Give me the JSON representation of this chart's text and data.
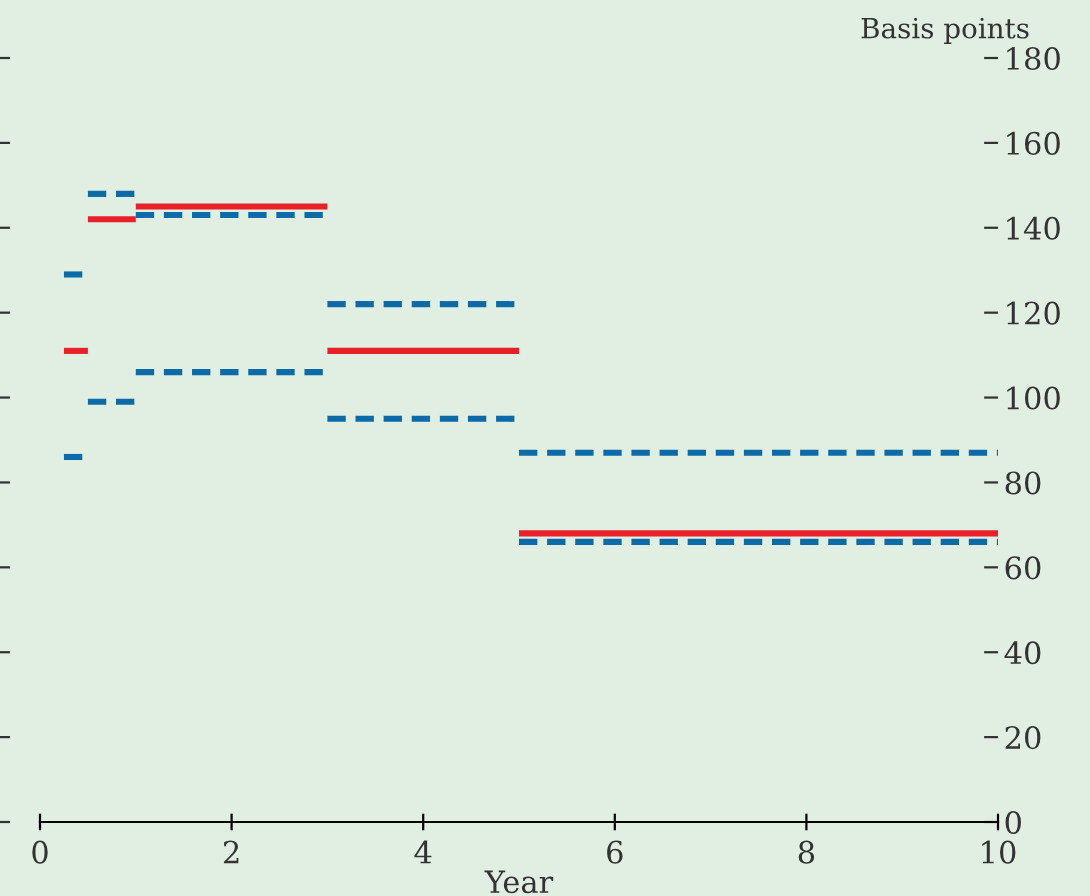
{
  "chart_data": {
    "type": "line",
    "xlabel": "Year",
    "ylabel": "Basis points",
    "xlim": [
      0,
      10
    ],
    "xticks": [
      0,
      2,
      4,
      6,
      8,
      10
    ],
    "ylim": [
      0,
      180
    ],
    "yticks": [
      0,
      20,
      40,
      60,
      80,
      100,
      120,
      140,
      160,
      180
    ],
    "grid": false,
    "legend": false,
    "marker": "none",
    "series": [
      {
        "color": "#e8202a",
        "line_style": "solid",
        "x": [
          0.25,
          0.5
        ],
        "values": [
          111,
          111
        ]
      },
      {
        "color": "#e8202a",
        "line_style": "solid",
        "x": [
          0.5,
          1
        ],
        "values": [
          142,
          142
        ]
      },
      {
        "color": "#e8202a",
        "line_style": "solid",
        "x": [
          1,
          3
        ],
        "values": [
          145,
          145
        ]
      },
      {
        "color": "#e8202a",
        "line_style": "solid",
        "x": [
          3,
          5
        ],
        "values": [
          111,
          111
        ]
      },
      {
        "color": "#e8202a",
        "line_style": "solid",
        "x": [
          5,
          10
        ],
        "values": [
          68,
          68
        ]
      },
      {
        "color": "#0b6aa8",
        "line_style": "dashed",
        "x": [
          0.25,
          0.5
        ],
        "values": [
          129,
          129
        ]
      },
      {
        "color": "#0b6aa8",
        "line_style": "dashed",
        "x": [
          0.5,
          1
        ],
        "values": [
          148,
          148
        ]
      },
      {
        "color": "#0b6aa8",
        "line_style": "dashed",
        "x": [
          1,
          3
        ],
        "values": [
          143,
          143
        ]
      },
      {
        "color": "#0b6aa8",
        "line_style": "dashed",
        "x": [
          3,
          5
        ],
        "values": [
          122,
          122
        ]
      },
      {
        "color": "#0b6aa8",
        "line_style": "dashed",
        "x": [
          5,
          10
        ],
        "values": [
          87,
          87
        ]
      },
      {
        "color": "#0b6aa8",
        "line_style": "dashed",
        "x": [
          0.25,
          0.5
        ],
        "values": [
          86,
          86
        ]
      },
      {
        "color": "#0b6aa8",
        "line_style": "dashed",
        "x": [
          0.5,
          1
        ],
        "values": [
          99,
          99
        ]
      },
      {
        "color": "#0b6aa8",
        "line_style": "dashed",
        "x": [
          1,
          3
        ],
        "values": [
          106,
          106
        ]
      },
      {
        "color": "#0b6aa8",
        "line_style": "dashed",
        "x": [
          3,
          5
        ],
        "values": [
          95,
          95
        ]
      },
      {
        "color": "#0b6aa8",
        "line_style": "dashed",
        "x": [
          5,
          10
        ],
        "values": [
          66,
          66
        ]
      }
    ]
  }
}
